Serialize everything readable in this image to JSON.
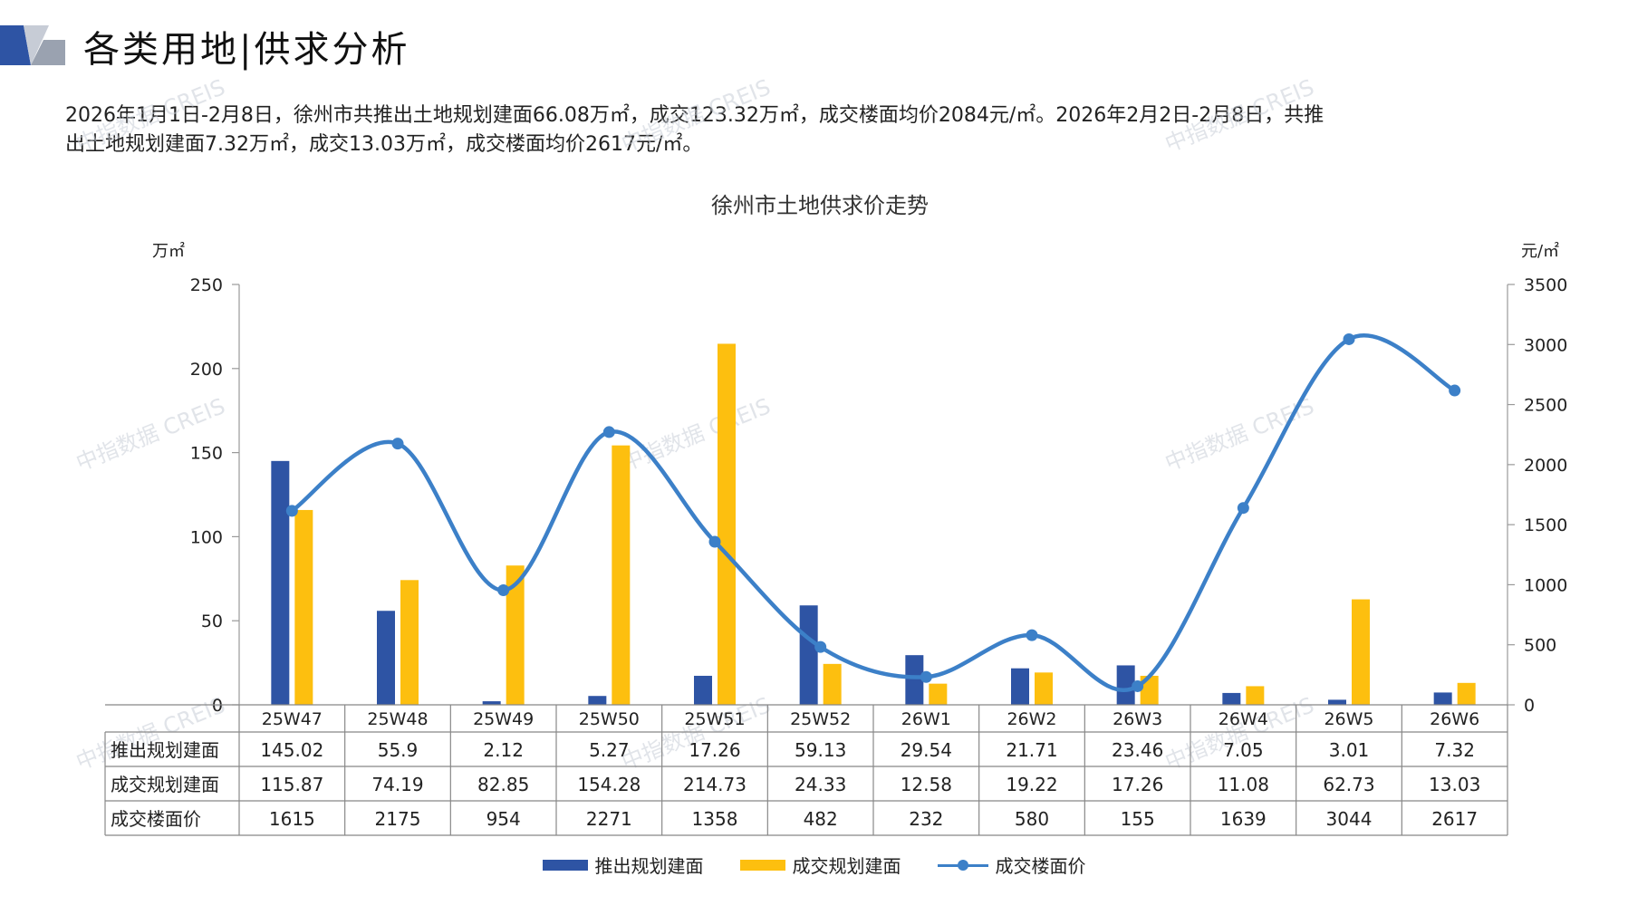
{
  "header": {
    "title": "各类用地|供求分析"
  },
  "summary": {
    "line1": "2026年1月1日-2月8日，徐州市共推出土地规划建面66.08万㎡，成交123.32万㎡，成交楼面均价2084元/㎡。2026年2月2日-2月8日，共推",
    "line2": "出土地规划建面7.32万㎡，成交13.03万㎡，成交楼面均价2617元/㎡。"
  },
  "watermark_text": "中指数据 CREIS",
  "colors": {
    "supply": "#2e54a4",
    "deal_area": "#fdbf0f",
    "price": "#3c80c8"
  },
  "chart_data": {
    "type": "bar",
    "title": "徐州市土地供求价走势",
    "ylabel_left": "万㎡",
    "ylabel_right": "元/㎡",
    "ylim_left": [
      0,
      250
    ],
    "yticks_left": [
      0,
      50,
      100,
      150,
      200,
      250
    ],
    "ylim_right": [
      0,
      3500
    ],
    "yticks_right": [
      0,
      500,
      1000,
      1500,
      2000,
      2500,
      3000,
      3500
    ],
    "categories": [
      "25W47",
      "25W48",
      "25W49",
      "25W50",
      "25W51",
      "25W52",
      "26W1",
      "26W2",
      "26W3",
      "26W4",
      "26W5",
      "26W6"
    ],
    "series": [
      {
        "name": "推出规划建面",
        "type": "bar",
        "axis": "left",
        "values": [
          145.02,
          55.9,
          2.12,
          5.27,
          17.26,
          59.13,
          29.54,
          21.71,
          23.46,
          7.05,
          3.01,
          7.32
        ],
        "labels": [
          "145.02",
          "55.9",
          "2.12",
          "5.27",
          "17.26",
          "59.13",
          "29.54",
          "21.71",
          "23.46",
          "7.05",
          "3.01",
          "7.32"
        ]
      },
      {
        "name": "成交规划建面",
        "type": "bar",
        "axis": "left",
        "values": [
          115.87,
          74.19,
          82.85,
          154.28,
          214.73,
          24.33,
          12.58,
          19.22,
          17.26,
          11.08,
          62.73,
          13.03
        ],
        "labels": [
          "115.87",
          "74.19",
          "82.85",
          "154.28",
          "214.73",
          "24.33",
          "12.58",
          "19.22",
          "17.26",
          "11.08",
          "62.73",
          "13.03"
        ]
      },
      {
        "name": "成交楼面价",
        "type": "line",
        "axis": "right",
        "values": [
          1615,
          2175,
          954,
          2271,
          1358,
          482,
          232,
          580,
          155,
          1639,
          3044,
          2617
        ],
        "labels": [
          "1615",
          "2175",
          "954",
          "2271",
          "1358",
          "482",
          "232",
          "580",
          "155",
          "1639",
          "3044",
          "2617"
        ]
      }
    ],
    "legend": "bottom",
    "grid": false
  }
}
